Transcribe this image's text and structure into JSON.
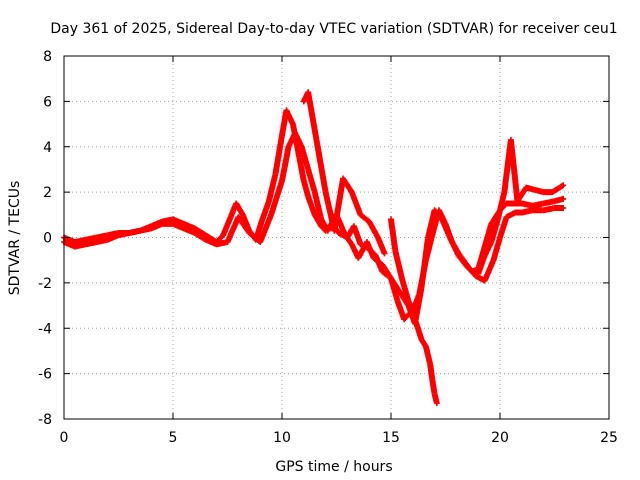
{
  "chart_data": {
    "type": "scatter",
    "title": "Day 361 of 2025, Sidereal Day-to-day VTEC variation (SDTVAR) for receiver ceu1",
    "xlabel": "GPS time / hours",
    "ylabel": "SDTVAR / TECUs",
    "xlim": [
      0,
      25
    ],
    "ylim": [
      -8,
      8
    ],
    "x_ticks": [
      0,
      5,
      10,
      15,
      20,
      25
    ],
    "y_ticks": [
      -8,
      -6,
      -4,
      -2,
      0,
      2,
      4,
      6,
      8
    ],
    "x_tick_labels": [
      "0",
      "5",
      "10",
      "15",
      "20",
      "25"
    ],
    "y_tick_labels": [
      "-8",
      "-6",
      "-4",
      "-2",
      "0",
      "2",
      "4",
      "6",
      "8"
    ],
    "grid": true,
    "marker": "+",
    "series_color": "#ff0000",
    "series": [
      {
        "x": [
          0,
          0.5,
          1,
          1.5,
          2,
          2.5,
          3,
          3.5,
          4,
          4.5,
          5,
          5.5,
          6,
          6.5,
          7,
          7.3,
          7.6,
          7.9,
          8.2,
          8.5,
          8.8,
          9.1,
          9.4,
          9.7,
          10.0,
          10.2,
          10.5,
          10.8,
          11.0,
          11.2,
          11.5,
          11.8,
          12.0,
          12.3,
          12.6,
          13.0,
          13.3,
          13.6,
          14.0,
          14.3,
          14.6,
          15.0,
          15.3,
          15.6,
          16.0,
          16.3,
          16.6,
          17.0,
          17.2,
          17.5,
          17.8,
          18.1,
          18.4,
          18.7,
          19.0,
          19.3,
          19.6,
          20.0,
          20.3,
          20.6,
          21.0,
          21.5,
          22.0,
          22.5,
          22.9
        ],
        "y": [
          -0.2,
          -0.4,
          -0.3,
          -0.2,
          -0.1,
          0.1,
          0.2,
          0.3,
          0.5,
          0.7,
          0.8,
          0.6,
          0.4,
          0.1,
          -0.2,
          0.1,
          0.8,
          1.5,
          1.0,
          0.3,
          -0.1,
          0.8,
          1.6,
          2.8,
          4.5,
          5.6,
          5.0,
          3.5,
          2.5,
          1.8,
          1.0,
          0.5,
          0.3,
          0.6,
          0.2,
          0.0,
          0.5,
          -0.3,
          -0.5,
          -0.8,
          -1.5,
          -1.8,
          -2.8,
          -3.6,
          -3.2,
          -2.5,
          -1.0,
          0.5,
          1.2,
          0.6,
          -0.2,
          -0.7,
          -1.1,
          -1.5,
          -1.4,
          -0.4,
          0.6,
          1.2,
          1.5,
          1.5,
          1.5,
          1.4,
          1.5,
          1.6,
          1.7
        ]
      },
      {
        "x": [
          0,
          0.5,
          1,
          1.5,
          2,
          2.5,
          3,
          3.5,
          4,
          4.5,
          5,
          5.5,
          6,
          6.5,
          7,
          7.5,
          8,
          8.5,
          9,
          9.5,
          10.0,
          10.3,
          10.6,
          10.9,
          11.2,
          11.5,
          11.8,
          12.1,
          12.5,
          12.9,
          13.2,
          13.5,
          13.9,
          14.2,
          14.6,
          15.0,
          15.4,
          15.8,
          16.1,
          16.4,
          16.7,
          17.0,
          17.3,
          17.7,
          18.1,
          18.5,
          18.9,
          19.3,
          19.7,
          20.0,
          20.3,
          20.7,
          21.0,
          21.5,
          22.0,
          22.5,
          22.9
        ],
        "y": [
          0.0,
          -0.2,
          -0.1,
          0.0,
          0.1,
          0.2,
          0.2,
          0.3,
          0.4,
          0.6,
          0.6,
          0.4,
          0.2,
          -0.1,
          -0.3,
          -0.2,
          0.9,
          0.2,
          -0.2,
          1.0,
          2.5,
          4.0,
          4.6,
          4.0,
          3.0,
          2.0,
          0.8,
          0.3,
          1.0,
          0.1,
          -0.3,
          -0.9,
          -0.2,
          -0.9,
          -1.2,
          -1.8,
          -2.4,
          -3.0,
          -3.8,
          -2.2,
          0.0,
          1.2,
          0.9,
          0.0,
          -0.8,
          -1.3,
          -1.7,
          -1.9,
          -1.0,
          0.0,
          0.9,
          1.1,
          1.1,
          1.2,
          1.2,
          1.3,
          1.3
        ]
      },
      {
        "x": [
          11.0,
          11.2,
          12.0,
          12.4,
          12.8,
          13.2,
          13.6,
          14.0,
          14.4,
          14.7
        ],
        "y": [
          6.0,
          6.4,
          2.0,
          0.3,
          2.6,
          2.0,
          1.0,
          0.7,
          0.0,
          -0.7
        ]
      },
      {
        "x": [
          15.0,
          15.2,
          15.5,
          15.8,
          16.1,
          16.4,
          16.6,
          16.8,
          16.9,
          17.0,
          17.1
        ],
        "y": [
          0.8,
          -0.6,
          -1.8,
          -2.8,
          -3.6,
          -4.5,
          -4.8,
          -5.6,
          -6.3,
          -6.9,
          -7.3
        ]
      },
      {
        "x": [
          19.0,
          19.3,
          19.6,
          19.9,
          20.2,
          20.5,
          20.8,
          21.2,
          21.6,
          22.0,
          22.4,
          22.9
        ],
        "y": [
          -1.6,
          -0.8,
          -0.2,
          0.8,
          2.0,
          4.3,
          1.6,
          2.2,
          2.1,
          2.0,
          2.0,
          2.3
        ]
      }
    ]
  }
}
